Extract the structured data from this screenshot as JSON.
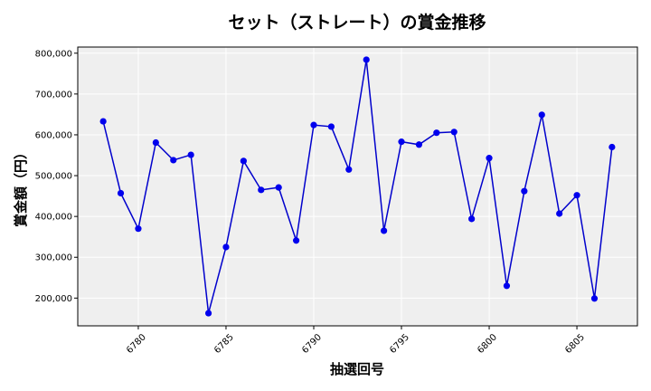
{
  "chart_data": {
    "type": "line",
    "title": "セット（ストレート）の賞金推移",
    "xlabel": "抽選回号",
    "ylabel": "賞金額（円）",
    "x": [
      6778,
      6779,
      6780,
      6781,
      6782,
      6783,
      6784,
      6785,
      6786,
      6787,
      6788,
      6789,
      6790,
      6791,
      6792,
      6793,
      6794,
      6795,
      6796,
      6797,
      6798,
      6799,
      6800,
      6801,
      6802,
      6803,
      6804,
      6805,
      6806,
      6807
    ],
    "series": [
      {
        "values": [
          633000,
          457000,
          370000,
          581000,
          538000,
          551000,
          163000,
          325000,
          536000,
          465000,
          471000,
          341000,
          624000,
          620000,
          515000,
          784000,
          365000,
          583000,
          576000,
          605000,
          607000,
          394000,
          543000,
          230000,
          462000,
          649000,
          407000,
          452000,
          199000,
          570000
        ]
      }
    ],
    "xticks": [
      6780,
      6785,
      6790,
      6795,
      6800,
      6805
    ],
    "yticks": [
      200000,
      300000,
      400000,
      500000,
      600000,
      700000,
      800000
    ],
    "ytick_labels": [
      "200,000",
      "300,000",
      "400,000",
      "500,000",
      "600,000",
      "700,000",
      "800,000"
    ],
    "xlim": [
      6776.55,
      6808.45
    ],
    "ylim": [
      132000,
      815000
    ],
    "grid": true,
    "colors": {
      "line": "#0000cc",
      "marker": "#0000ee",
      "plot_bg": "#efefef",
      "grid": "#ffffff"
    }
  }
}
